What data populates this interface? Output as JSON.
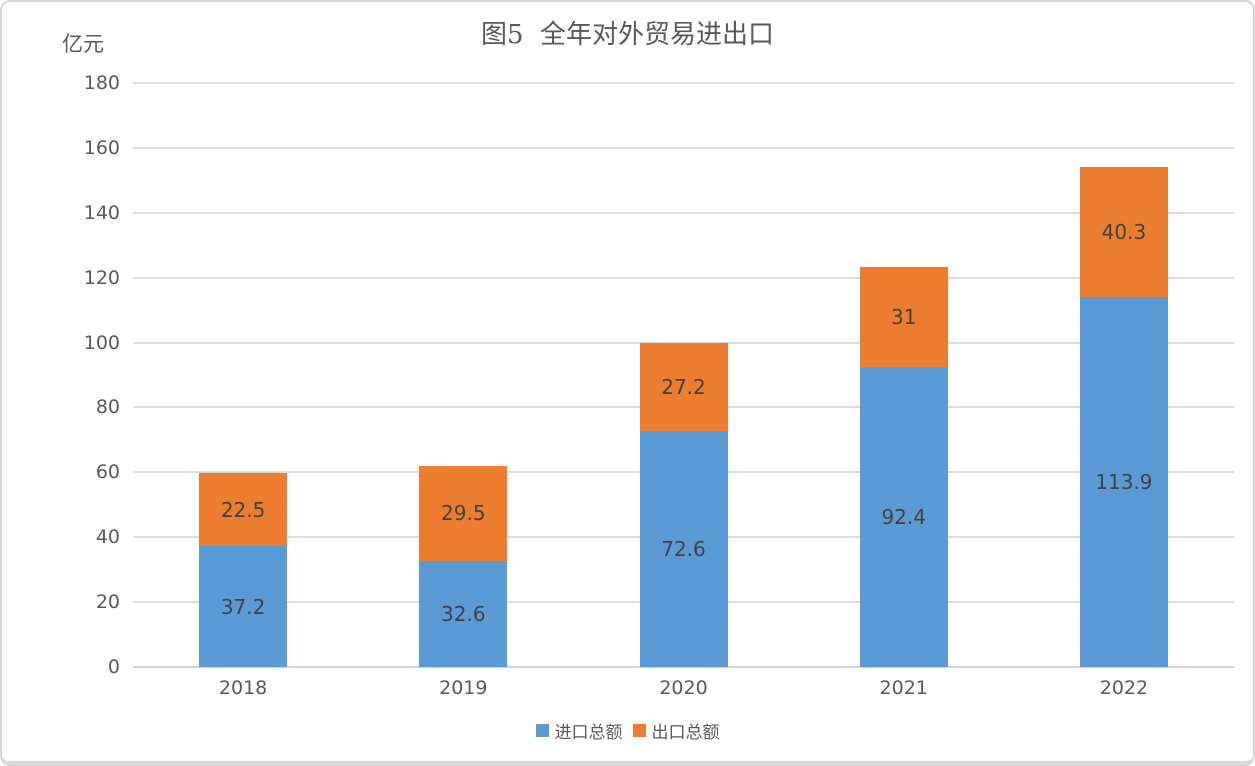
{
  "title": "图5  全年对外贸易进出口",
  "unit_label": "亿元",
  "colors": {
    "import_blue": "#5B9BD5",
    "export_orange": "#ED7D31",
    "gridline": "#DCDCDC",
    "axis_text": "#595959",
    "value_text": "#404040",
    "border": "#D6D6D6"
  },
  "chart_data": {
    "type": "bar",
    "stacked": true,
    "title": "图5  全年对外贸易进出口",
    "ylabel": "亿元",
    "xlabel": "",
    "categories": [
      "2018",
      "2019",
      "2020",
      "2021",
      "2022"
    ],
    "series": [
      {
        "name": "进口总额",
        "color": "#5B9BD5",
        "values": [
          37.2,
          32.6,
          72.6,
          92.4,
          113.9
        ]
      },
      {
        "name": "出口总额",
        "color": "#ED7D31",
        "values": [
          22.5,
          29.5,
          27.2,
          31,
          40.3
        ]
      }
    ],
    "ylim": [
      0,
      180
    ],
    "ytick_step": 20,
    "grid": true,
    "legend_position": "bottom"
  }
}
